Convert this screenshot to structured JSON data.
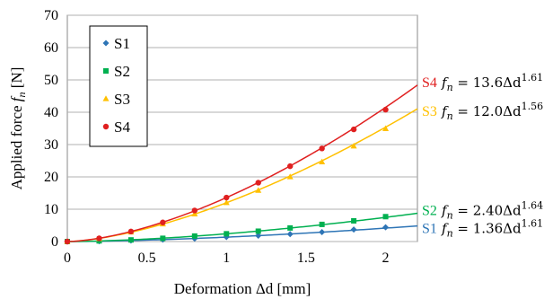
{
  "chart_data": {
    "type": "scatter",
    "xlabel": "Deformation Δd [mm]",
    "ylabel": "Applied force f_n [N]",
    "xlim": [
      0,
      2.2
    ],
    "ylim": [
      0,
      70
    ],
    "xticks": [
      "0",
      "0.5",
      "1",
      "1.5",
      "2"
    ],
    "yticks": [
      "0",
      "10",
      "20",
      "30",
      "40",
      "50",
      "60",
      "70"
    ],
    "grid": "horizontal",
    "legend_position": "top-left",
    "x": [
      0,
      0.2,
      0.4,
      0.6,
      0.8,
      1.0,
      1.2,
      1.4,
      1.6,
      1.8,
      2.0
    ],
    "series": [
      {
        "name": "S1",
        "color": "#2e75b6",
        "marker": "diamond",
        "values": [
          0,
          0.1,
          0.3,
          0.6,
          0.9,
          1.4,
          1.8,
          2.3,
          2.9,
          3.7,
          4.4
        ],
        "fit_coefficient": 1.36,
        "fit_exponent": 1.61,
        "fit_label": "S1",
        "fit_equation": "f_n = 1.36Δd^1.61"
      },
      {
        "name": "S2",
        "color": "#00b050",
        "marker": "square",
        "values": [
          0,
          0.2,
          0.5,
          1.0,
          1.7,
          2.4,
          3.2,
          4.2,
          5.3,
          6.4,
          7.7
        ],
        "fit_coefficient": 2.4,
        "fit_exponent": 1.64,
        "fit_label": "S2",
        "fit_equation": "f_n = 2.40Δd^1.64"
      },
      {
        "name": "S3",
        "color": "#ffc000",
        "marker": "triangle",
        "values": [
          0,
          0.9,
          2.9,
          5.4,
          8.5,
          12.0,
          15.8,
          20.0,
          24.6,
          29.5,
          34.9
        ],
        "fit_coefficient": 12.0,
        "fit_exponent": 1.56,
        "fit_label": "S3",
        "fit_equation": "f_n = 12.0Δd^1.56"
      },
      {
        "name": "S4",
        "color": "#e02020",
        "marker": "circle",
        "values": [
          0,
          1.0,
          3.1,
          5.9,
          9.6,
          13.6,
          18.2,
          23.3,
          28.8,
          34.7,
          40.8
        ],
        "fit_coefficient": 13.6,
        "fit_exponent": 1.61,
        "fit_label": "S4",
        "fit_equation": "f_n = 13.6Δd^1.61"
      }
    ]
  }
}
